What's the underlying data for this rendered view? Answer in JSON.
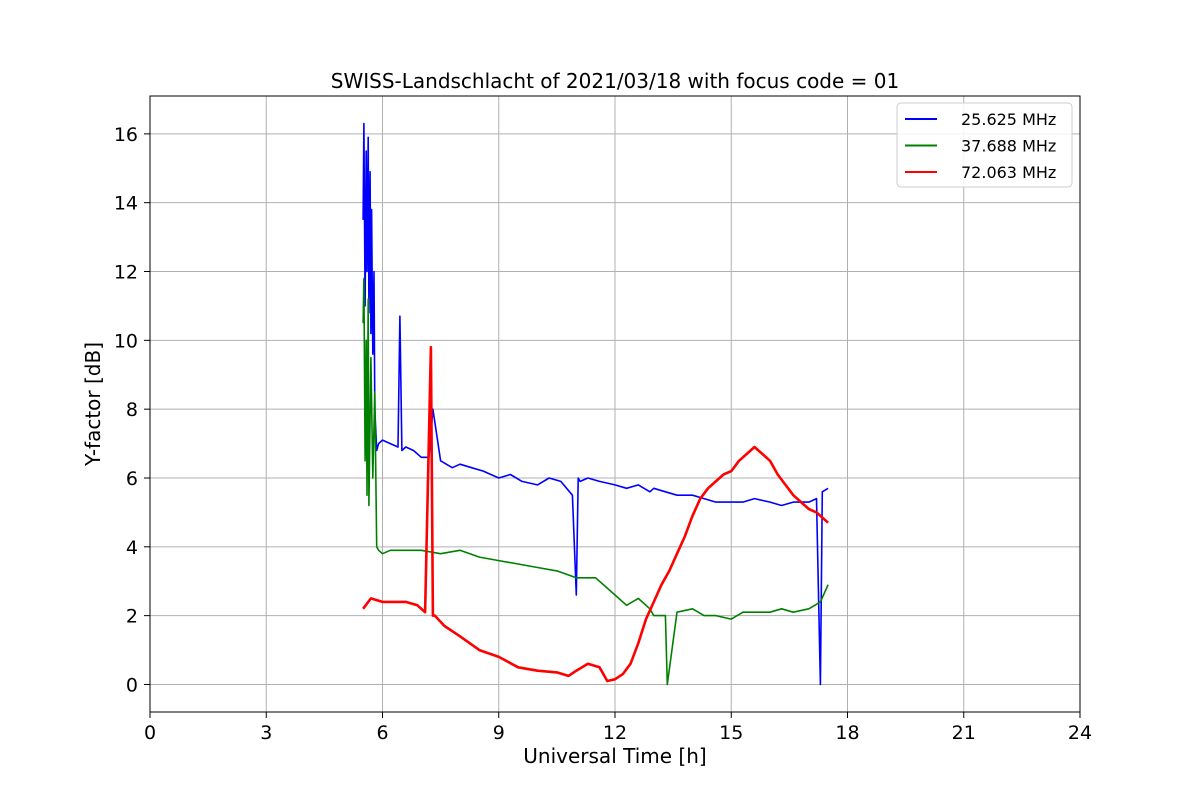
{
  "chart_data": {
    "type": "line",
    "title": "SWISS-Landschlacht of 2021/03/18 with focus code = 01",
    "xlabel": "Universal Time [h]",
    "ylabel": "Y-factor [dB]",
    "xlim": [
      0,
      24
    ],
    "ylim": [
      -0.8,
      17.1
    ],
    "xticks": [
      0,
      3,
      6,
      9,
      12,
      15,
      18,
      21,
      24
    ],
    "yticks": [
      0,
      2,
      4,
      6,
      8,
      10,
      12,
      14,
      16
    ],
    "grid": true,
    "legend_position": "top-right",
    "series": [
      {
        "name": "25.625 MHz",
        "color": "#0000ff",
        "x": [
          5.5,
          5.52,
          5.55,
          5.58,
          5.6,
          5.63,
          5.65,
          5.68,
          5.7,
          5.72,
          5.75,
          5.78,
          5.8,
          5.85,
          5.9,
          6.0,
          6.2,
          6.4,
          6.45,
          6.5,
          6.6,
          6.8,
          7.0,
          7.2,
          7.3,
          7.5,
          7.8,
          8.0,
          8.3,
          8.6,
          9.0,
          9.3,
          9.6,
          10.0,
          10.3,
          10.6,
          10.9,
          11.0,
          11.05,
          11.1,
          11.3,
          11.6,
          12.0,
          12.3,
          12.6,
          12.9,
          13.0,
          13.3,
          13.6,
          14.0,
          14.3,
          14.6,
          15.0,
          15.3,
          15.6,
          16.0,
          16.3,
          16.6,
          17.0,
          17.2,
          17.3,
          17.35,
          17.5
        ],
        "y": [
          13.5,
          16.3,
          11.0,
          15.5,
          12.0,
          15.9,
          10.8,
          14.9,
          10.2,
          13.8,
          9.6,
          12.0,
          8.0,
          6.8,
          7.0,
          7.1,
          7.0,
          6.9,
          10.7,
          6.8,
          6.9,
          6.8,
          6.6,
          6.6,
          8.0,
          6.5,
          6.3,
          6.4,
          6.3,
          6.2,
          6.0,
          6.1,
          5.9,
          5.8,
          6.0,
          5.9,
          5.5,
          2.6,
          6.0,
          5.9,
          6.0,
          5.9,
          5.8,
          5.7,
          5.8,
          5.6,
          5.7,
          5.6,
          5.5,
          5.5,
          5.4,
          5.3,
          5.3,
          5.3,
          5.4,
          5.3,
          5.2,
          5.3,
          5.3,
          5.4,
          0.0,
          5.6,
          5.7
        ]
      },
      {
        "name": "37.688 MHz",
        "color": "#008000",
        "x": [
          5.5,
          5.52,
          5.55,
          5.58,
          5.6,
          5.63,
          5.65,
          5.7,
          5.75,
          5.8,
          5.85,
          5.9,
          6.0,
          6.2,
          6.5,
          7.0,
          7.5,
          8.0,
          8.5,
          9.0,
          9.5,
          10.0,
          10.5,
          11.0,
          11.5,
          12.0,
          12.3,
          12.6,
          12.9,
          13.0,
          13.3,
          13.35,
          13.6,
          14.0,
          14.3,
          14.6,
          15.0,
          15.3,
          15.6,
          16.0,
          16.3,
          16.6,
          17.0,
          17.3,
          17.5
        ],
        "y": [
          10.5,
          11.8,
          6.5,
          10.0,
          5.5,
          11.2,
          5.2,
          9.5,
          6.0,
          8.5,
          4.0,
          3.9,
          3.8,
          3.9,
          3.9,
          3.9,
          3.8,
          3.9,
          3.7,
          3.6,
          3.5,
          3.4,
          3.3,
          3.1,
          3.1,
          2.6,
          2.3,
          2.5,
          2.2,
          2.0,
          2.0,
          0.0,
          2.1,
          2.2,
          2.0,
          2.0,
          1.9,
          2.1,
          2.1,
          2.1,
          2.2,
          2.1,
          2.2,
          2.4,
          2.9
        ]
      },
      {
        "name": "72.063 MHz",
        "color": "#ff0000",
        "x": [
          5.5,
          5.7,
          6.0,
          6.3,
          6.6,
          6.9,
          7.1,
          7.25,
          7.3,
          7.35,
          7.6,
          8.0,
          8.5,
          9.0,
          9.5,
          10.0,
          10.5,
          10.8,
          11.0,
          11.3,
          11.6,
          11.8,
          12.0,
          12.2,
          12.4,
          12.6,
          12.8,
          13.0,
          13.2,
          13.4,
          13.6,
          13.8,
          14.0,
          14.2,
          14.4,
          14.6,
          14.8,
          15.0,
          15.2,
          15.4,
          15.6,
          15.8,
          16.0,
          16.2,
          16.4,
          16.6,
          16.8,
          17.0,
          17.2,
          17.4,
          17.5
        ],
        "y": [
          2.2,
          2.5,
          2.4,
          2.4,
          2.4,
          2.3,
          2.1,
          9.8,
          2.0,
          2.0,
          1.7,
          1.4,
          1.0,
          0.8,
          0.5,
          0.4,
          0.35,
          0.25,
          0.4,
          0.6,
          0.5,
          0.1,
          0.15,
          0.3,
          0.6,
          1.2,
          1.9,
          2.4,
          2.9,
          3.3,
          3.8,
          4.3,
          4.9,
          5.4,
          5.7,
          5.9,
          6.1,
          6.2,
          6.5,
          6.7,
          6.9,
          6.7,
          6.5,
          6.1,
          5.8,
          5.5,
          5.3,
          5.1,
          5.0,
          4.8,
          4.7
        ]
      }
    ]
  }
}
